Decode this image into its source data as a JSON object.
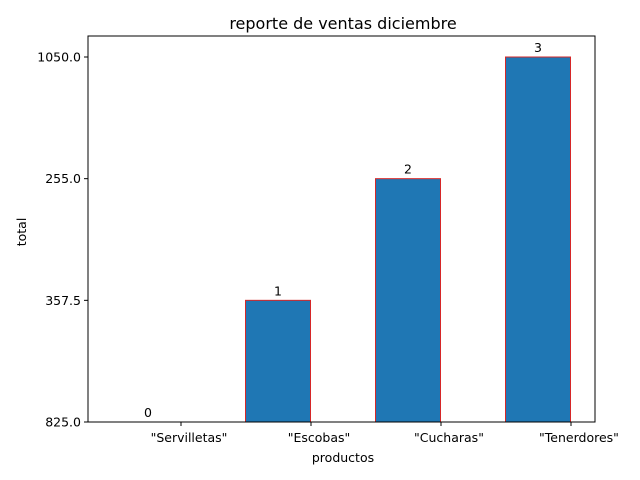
{
  "chart_data": {
    "type": "bar",
    "title": "reporte de ventas diciembre",
    "xlabel": "productos",
    "ylabel": "total",
    "categories": [
      "\"Servilletas\"",
      "\"Escobas\"",
      "\"Cucharas\"",
      "\"Tenerdores\""
    ],
    "y_tick_labels": [
      "825.0",
      "357.5",
      "255.0",
      "1050.0"
    ],
    "values": [
      0,
      1,
      2,
      3
    ],
    "bar_labels": [
      "0",
      "1",
      "2",
      "3"
    ],
    "ylim": [
      0,
      3
    ],
    "bar_color": "#1f77b4",
    "bar_edge_color": "#d62728",
    "grid": false,
    "legend": "none"
  }
}
